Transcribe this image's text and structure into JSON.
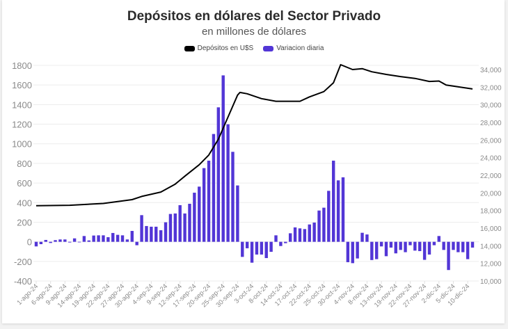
{
  "chart_data": {
    "type": "bar+line",
    "title": "Depósitos en dólares del Sector Privado",
    "subtitle": "en millones de dólares",
    "legend": [
      {
        "name": "Depósitos en U$S",
        "color": "#000000"
      },
      {
        "name": "Variacion diaria",
        "color": "#5236d6"
      }
    ],
    "legend_placement": "top-center",
    "left_axis": {
      "ylim": [
        -400,
        1800
      ],
      "ticks": [
        "1800",
        "1600",
        "1400",
        "1200",
        "1000",
        "800",
        "600",
        "400",
        "200",
        "0",
        "-200",
        "-400"
      ],
      "tick_values": [
        1800,
        1600,
        1400,
        1200,
        1000,
        800,
        600,
        400,
        200,
        0,
        -200,
        -400
      ]
    },
    "right_axis": {
      "ylim": [
        10000,
        34000
      ],
      "ticks": [
        "34,000",
        "32,000",
        "30,000",
        "28,000",
        "26,000",
        "24,000",
        "22,000",
        "20,000",
        "18,000",
        "16,000",
        "14,000",
        "12,000",
        "10,000"
      ],
      "tick_values": [
        34000,
        32000,
        30000,
        28000,
        26000,
        24000,
        22000,
        20000,
        18000,
        16000,
        14000,
        12000,
        10000
      ]
    },
    "x_tick_labels": [
      "1-ago-24",
      "6-ago-24",
      "9-ago-24",
      "14-ago-24",
      "19-ago-24",
      "22-ago-24",
      "27-ago-24",
      "30-ago-24",
      "4-sep-24",
      "9-sep-24",
      "12-sep-24",
      "17-sep-24",
      "20-sep-24",
      "25-sep-24",
      "30-sep-24",
      "3-oct-24",
      "8-oct-24",
      "14-oct-24",
      "17-oct-24",
      "22-oct-24",
      "25-oct-24",
      "30-oct-24",
      "4-nov-24",
      "8-nov-24",
      "13-nov-24",
      "19-nov-24",
      "22-nov-24",
      "27-nov-24",
      "2-dic-24",
      "5-dic-24",
      "10-dic-24"
    ],
    "x_tick_every": 3,
    "grid": true,
    "bars": {
      "name": "Variacion diaria",
      "axis": "left",
      "values": [
        -47,
        -24,
        19,
        -12,
        17,
        24,
        24,
        -7,
        35,
        -5,
        59,
        14,
        64,
        66,
        66,
        47,
        90,
        71,
        66,
        24,
        111,
        -35,
        272,
        161,
        154,
        154,
        118,
        199,
        284,
        289,
        374,
        289,
        388,
        501,
        563,
        752,
        828,
        1100,
        1372,
        1698,
        1199,
        918,
        575,
        -154,
        -66,
        -213,
        -130,
        -130,
        -166,
        -102,
        66,
        -43,
        -14,
        87,
        147,
        137,
        130,
        177,
        196,
        319,
        348,
        520,
        828,
        627,
        658,
        -208,
        -218,
        -170,
        92,
        75,
        -186,
        -177,
        -47,
        -147,
        -59,
        -118,
        -83,
        -106,
        -35,
        -90,
        -95,
        -184,
        -130,
        -35,
        59,
        -83,
        -288,
        -83,
        -106,
        -106,
        -177,
        -59
      ]
    },
    "line": {
      "name": "Depósitos en U$S",
      "axis": "right",
      "points": [
        [
          1,
          18550
        ],
        [
          8,
          18600
        ],
        [
          15,
          18800
        ],
        [
          21,
          19240
        ],
        [
          23,
          19600
        ],
        [
          27,
          20100
        ],
        [
          30,
          21000
        ],
        [
          32,
          21900
        ],
        [
          35,
          23200
        ],
        [
          37,
          24300
        ],
        [
          39,
          26100
        ],
        [
          41,
          28600
        ],
        [
          43,
          31100
        ],
        [
          43.5,
          31400
        ],
        [
          45,
          31250
        ],
        [
          48,
          30700
        ],
        [
          51,
          30400
        ],
        [
          56,
          30400
        ],
        [
          58,
          30900
        ],
        [
          61,
          31500
        ],
        [
          63,
          32500
        ],
        [
          64.5,
          34550
        ],
        [
          67,
          34000
        ],
        [
          69,
          34100
        ],
        [
          71,
          33750
        ],
        [
          74,
          33450
        ],
        [
          77,
          33200
        ],
        [
          80,
          33000
        ],
        [
          83,
          32650
        ],
        [
          85,
          32700
        ],
        [
          86.5,
          32250
        ],
        [
          92,
          31800
        ]
      ]
    }
  }
}
